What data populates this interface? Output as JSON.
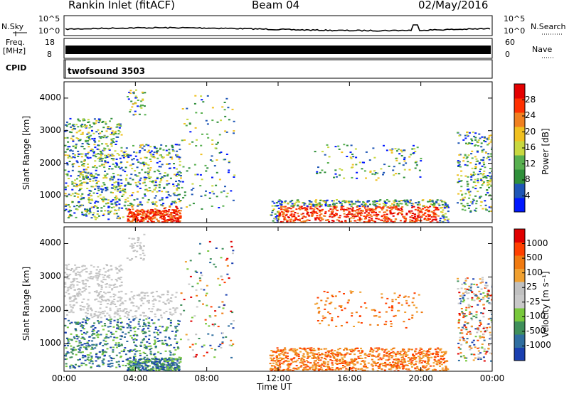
{
  "header": {
    "station": "Rankin Inlet (fitACF)",
    "beam": "Beam 04",
    "date": "02/May/2016"
  },
  "strip_labels": {
    "nsky": "N.Sky",
    "nsky_ticks": [
      "10^5",
      "10^0"
    ],
    "nsearch": "N.Search",
    "freq_line1": "Freq.",
    "freq_line2": "[MHz]",
    "freq_ticks": [
      "18",
      "8"
    ],
    "nave_ticks": [
      "60",
      "0"
    ],
    "nave": "Nave",
    "cpid": "CPID",
    "cpid_value": "twofsound 3503"
  },
  "chart_data": [
    {
      "type": "heatmap",
      "quantity": "Power",
      "ylabel": "Slant Range [km]",
      "colorbar_label": "Power [dB]",
      "colorbar_ticks": [
        "28",
        "24",
        "20",
        "16",
        "12",
        "8",
        "4"
      ],
      "x_ticks": [
        "00:00",
        "04:00",
        "08:00",
        "12:00",
        "16:00",
        "20:00",
        "00:00"
      ],
      "y_ticks": [
        "4000",
        "3000",
        "2000",
        "1000"
      ],
      "ylim": [
        180,
        4500
      ],
      "colors": [
        "#0018ff",
        "#1f56b6",
        "#2f8f3a",
        "#58b04f",
        "#c8d840",
        "#f0c020",
        "#f08020",
        "#ff3000",
        "#e40000"
      ]
    },
    {
      "type": "heatmap",
      "quantity": "Velocity",
      "ylabel": "Slant Range [km]",
      "xlabel": "Time UT",
      "colorbar_label": "Velocity [m s⁻¹]",
      "colorbar_ticks": [
        "1000",
        "500",
        "100",
        "25",
        "-25",
        "-100",
        "-500",
        "-1000"
      ],
      "x_ticks": [
        "00:00",
        "04:00",
        "08:00",
        "12:00",
        "16:00",
        "20:00",
        "00:00"
      ],
      "y_ticks": [
        "4000",
        "3000",
        "2000",
        "1000"
      ],
      "ylim": [
        180,
        4500
      ],
      "colors": [
        "#1a3fb0",
        "#2f6ea0",
        "#3f8f5a",
        "#78c83c",
        "#c8c8c8",
        "#c0c0c0",
        "#f0a030",
        "#f07a10",
        "#ff4000",
        "#e00000"
      ]
    }
  ]
}
